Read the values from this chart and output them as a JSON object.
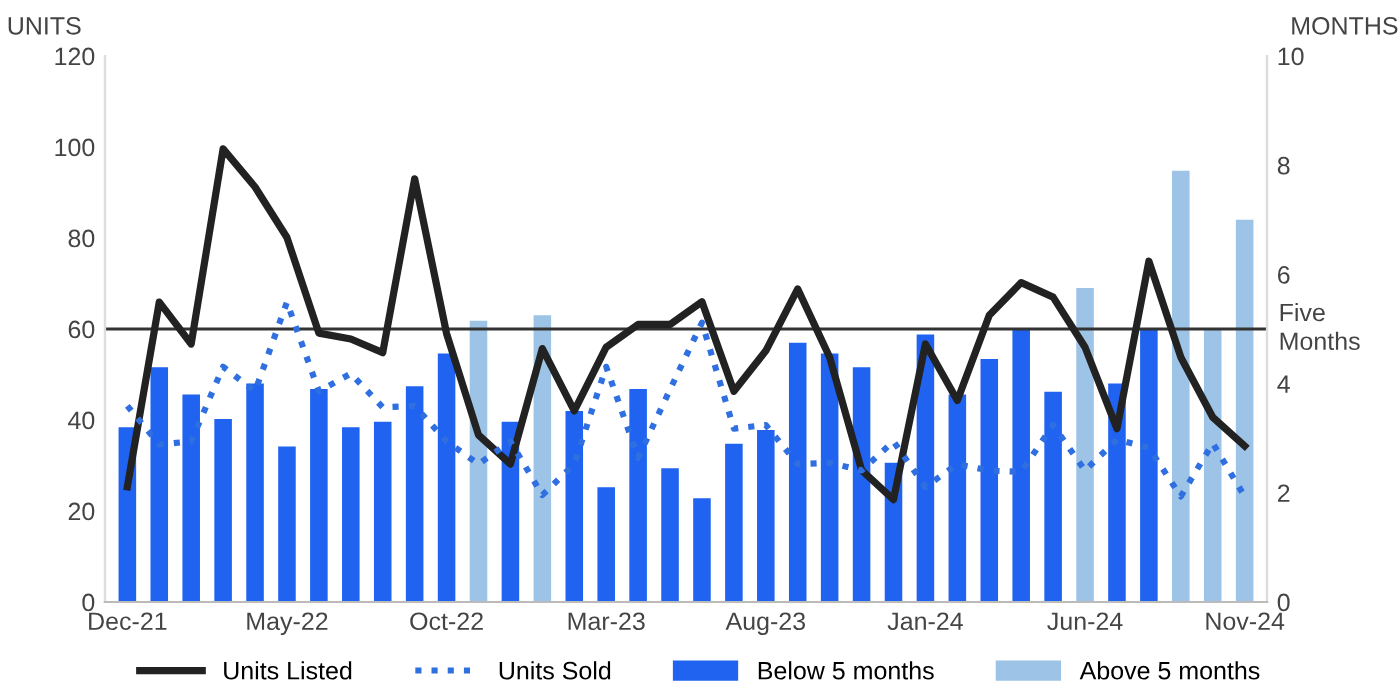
{
  "chart_data": {
    "type": "bar",
    "ylabel": "UNITS",
    "y2label": "MONTHS",
    "categories": [
      "Dec-21",
      null,
      null,
      null,
      null,
      "May-22",
      null,
      null,
      null,
      null,
      "Oct-22",
      null,
      null,
      null,
      null,
      "Mar-23",
      null,
      null,
      null,
      null,
      "Aug-23",
      null,
      null,
      null,
      null,
      "Jan-24",
      null,
      null,
      null,
      null,
      "Jun-24",
      null,
      null,
      null,
      null,
      "Nov-24"
    ],
    "series": [
      {
        "name": "Units Listed",
        "type": "line",
        "line_style": "solid",
        "color": "#222222",
        "values": [
          25.3,
          65.9,
          56.7,
          99.6,
          91.2,
          80.1,
          59.1,
          57.8,
          54.8,
          93,
          59,
          36.7,
          30.3,
          55.7,
          42,
          56,
          61,
          61,
          66,
          46.3,
          55.2,
          68.8,
          53.8,
          29,
          22.5,
          56.7,
          44.3,
          63,
          70.2,
          67,
          56,
          38.1,
          74.9,
          53.8,
          40.6,
          34.3
        ]
      },
      {
        "name": "Units Sold",
        "type": "line",
        "line_style": "dotted",
        "color": "#2f6fe0",
        "values": [
          43.1,
          34.6,
          35.3,
          51.7,
          46.3,
          65.9,
          46.3,
          50.2,
          42.8,
          43.1,
          35.3,
          30.3,
          35.3,
          23.5,
          30.3,
          51.7,
          31.7,
          46.7,
          61.4,
          38.1,
          38.9,
          30.3,
          30.6,
          28.9,
          35.3,
          25.3,
          30.3,
          28.9,
          28.6,
          38.9,
          28.9,
          35.7,
          33.9,
          23.2,
          34.9,
          23.2
        ]
      },
      {
        "name": "Below 5 months",
        "axis": "y2",
        "color": "#1f63f0",
        "values": [
          3.2,
          4.3,
          3.8,
          3.35,
          4.0,
          2.85,
          3.9,
          3.2,
          3.3,
          3.95,
          4.55,
          null,
          3.3,
          null,
          3.5,
          2.1,
          3.9,
          2.45,
          1.9,
          2.9,
          3.15,
          4.75,
          4.55,
          4.3,
          2.55,
          4.9,
          3.8,
          4.45,
          5.0,
          3.85,
          null,
          4.0,
          5.0,
          null,
          null,
          null
        ]
      },
      {
        "name": "Above 5 months",
        "axis": "y2",
        "color": "#9dc3e6",
        "values": [
          null,
          null,
          null,
          null,
          null,
          null,
          null,
          null,
          null,
          null,
          null,
          5.15,
          null,
          5.25,
          null,
          null,
          null,
          null,
          null,
          null,
          null,
          null,
          null,
          null,
          null,
          null,
          null,
          null,
          null,
          null,
          5.75,
          null,
          null,
          7.9,
          5.0,
          7.0
        ]
      }
    ],
    "ylim": [
      0,
      120
    ],
    "yticks": [
      0,
      20,
      40,
      60,
      80,
      100,
      120
    ],
    "y2lim": [
      0,
      10
    ],
    "y2ticks": [
      0,
      2,
      4,
      6,
      8,
      10
    ],
    "ref_lines": [
      {
        "axis": "y2",
        "value": 5,
        "label": "Five\nMonths",
        "color": "#333333",
        "line_style": "solid"
      }
    ],
    "legend": "bottom",
    "grid": false
  }
}
